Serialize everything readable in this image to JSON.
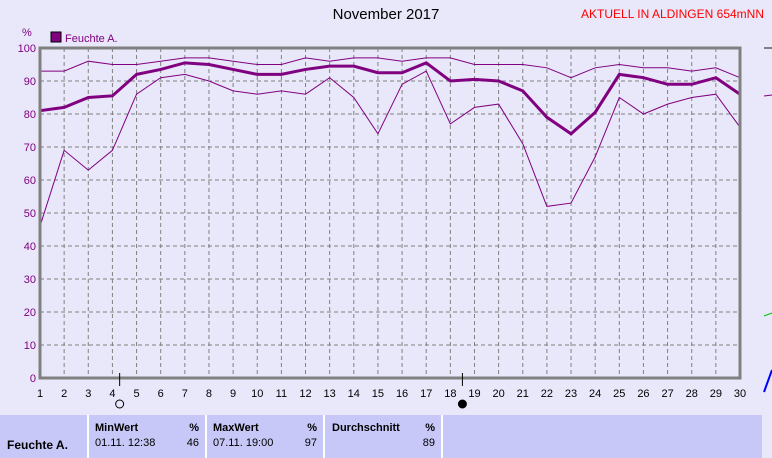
{
  "header": {
    "title": "November 2017",
    "station": "AKTUELL IN ALDINGEN 654mNN"
  },
  "colors": {
    "series": "#800080",
    "axis": "#808080",
    "grid": "#808080",
    "station": "#ff0000"
  },
  "chart_data": {
    "type": "line",
    "ylabel": "%",
    "ylim": [
      0,
      100
    ],
    "yticks": [
      0,
      10,
      20,
      30,
      40,
      50,
      60,
      70,
      80,
      90,
      100
    ],
    "xlim": [
      1,
      30
    ],
    "x": [
      1,
      2,
      3,
      4,
      5,
      6,
      7,
      8,
      9,
      10,
      11,
      12,
      13,
      14,
      15,
      16,
      17,
      18,
      19,
      20,
      21,
      22,
      23,
      24,
      25,
      26,
      27,
      28,
      29,
      30
    ],
    "grid": true,
    "legend": {
      "label": "Feuchte A.",
      "placement": "top-left"
    },
    "series": [
      {
        "role": "max",
        "values": [
          93,
          93,
          96,
          95,
          95,
          96,
          97,
          97,
          96,
          95,
          95,
          97,
          96,
          97,
          97,
          96,
          97,
          97,
          95,
          95,
          95,
          94,
          91,
          94,
          95,
          94,
          94,
          93,
          94,
          91
        ]
      },
      {
        "role": "mean",
        "values": [
          81,
          82,
          85,
          85.5,
          92,
          93.5,
          95.5,
          95,
          93.5,
          92,
          92,
          93.5,
          94.5,
          94.5,
          92.5,
          92.5,
          95.5,
          90,
          90.5,
          90,
          87,
          79,
          74,
          80.5,
          92,
          91,
          89,
          89,
          91,
          86
        ]
      },
      {
        "role": "min",
        "values": [
          46,
          69,
          63,
          69,
          86,
          91,
          92,
          90,
          87,
          86,
          87,
          86,
          91,
          85,
          74,
          89,
          93,
          77,
          82,
          83,
          71,
          52,
          53,
          67,
          85,
          80,
          83,
          85,
          86,
          76
        ]
      }
    ],
    "moon_phases": [
      {
        "day": 4.3,
        "phase": "full-moon"
      },
      {
        "day": 18.5,
        "phase": "new-moon"
      }
    ]
  },
  "stats": {
    "row_label": "Feuchte A.",
    "min": {
      "label": "MinWert",
      "unit": "%",
      "time": "01.11. 12:38",
      "value": "46"
    },
    "max": {
      "label": "MaxWert",
      "unit": "%",
      "time": "07.11. 19:00",
      "value": "97"
    },
    "avg": {
      "label": "Durchschnitt",
      "unit": "%",
      "value": "89"
    }
  }
}
